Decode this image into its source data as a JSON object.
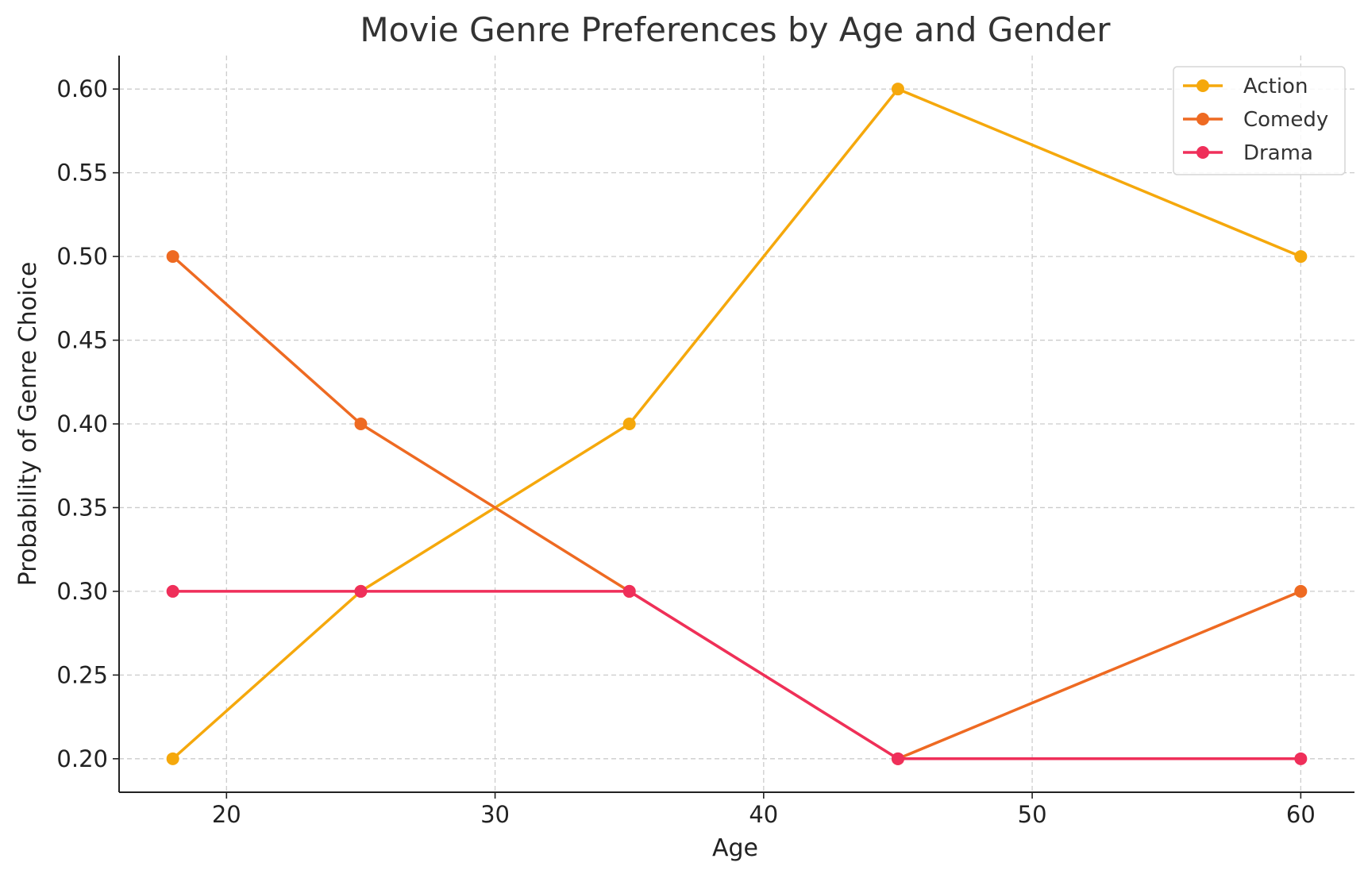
{
  "chart_data": {
    "type": "line",
    "title": "Movie Genre Preferences by Age and Gender",
    "xlabel": "Age",
    "ylabel": "Probability of Genre Choice",
    "x": [
      18,
      25,
      35,
      45,
      60
    ],
    "xlim": [
      16,
      62
    ],
    "ylim": [
      0.18,
      0.62
    ],
    "xticks": [
      20,
      30,
      40,
      50,
      60
    ],
    "xtick_labels": [
      "20",
      "30",
      "40",
      "50",
      "60"
    ],
    "yticks": [
      0.2,
      0.25,
      0.3,
      0.35,
      0.4,
      0.45,
      0.5,
      0.55,
      0.6
    ],
    "ytick_labels": [
      "0.20",
      "0.25",
      "0.30",
      "0.35",
      "0.40",
      "0.45",
      "0.50",
      "0.55",
      "0.60"
    ],
    "grid": true,
    "legend_position": "top-right",
    "series": [
      {
        "name": "Action",
        "color": "#F5A80C",
        "values": [
          0.2,
          0.3,
          0.4,
          0.6,
          0.5
        ]
      },
      {
        "name": "Comedy",
        "color": "#EE6A22",
        "values": [
          0.5,
          0.4,
          0.3,
          0.2,
          0.3
        ]
      },
      {
        "name": "Drama",
        "color": "#EF2F5A",
        "values": [
          0.3,
          0.3,
          0.3,
          0.2,
          0.2
        ]
      }
    ]
  }
}
